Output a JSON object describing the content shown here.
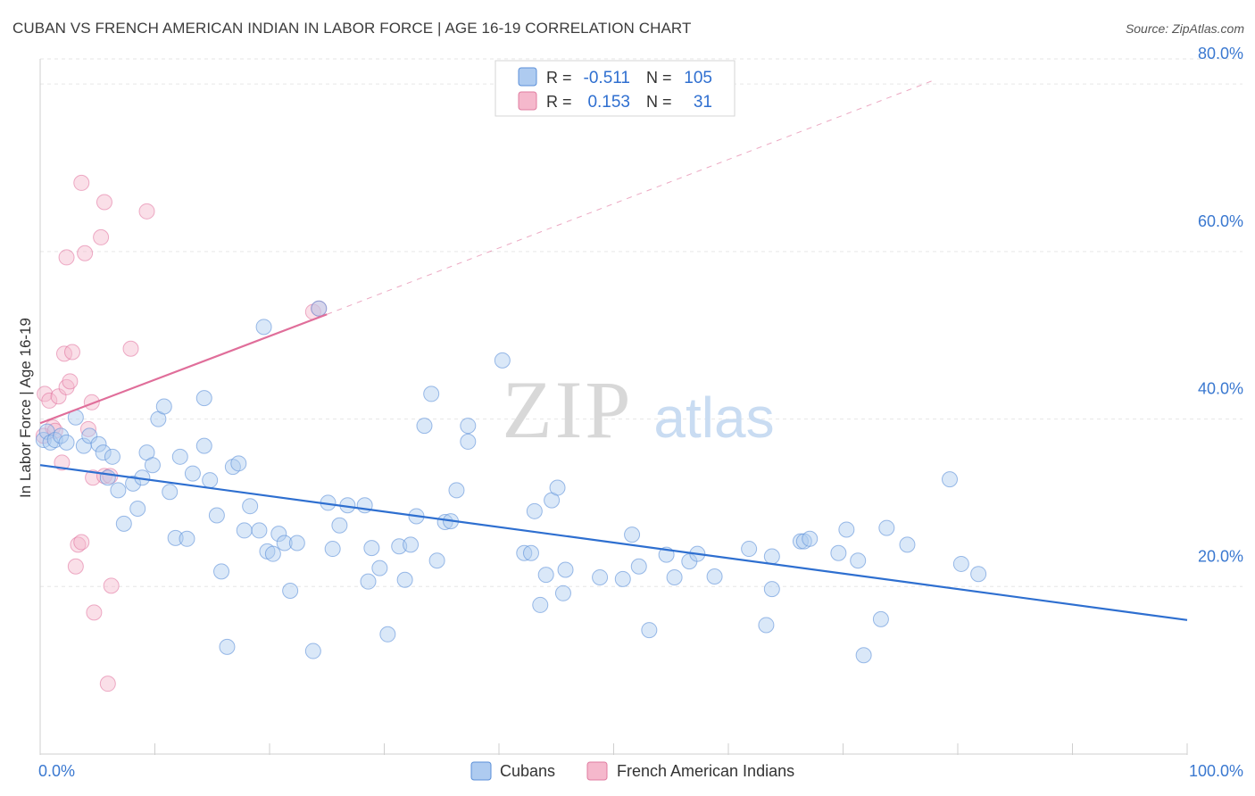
{
  "title": "CUBAN VS FRENCH AMERICAN INDIAN IN LABOR FORCE | AGE 16-19 CORRELATION CHART",
  "source": "Source: ZipAtlas.com",
  "watermark": {
    "zip": "ZIP",
    "atlas": "atlas"
  },
  "colors": {
    "blue": "#2e6fd0",
    "blue_fill": "#aecbf0",
    "pink": "#e06e9a",
    "pink_fill": "#f5b8cc",
    "axis_text": "#3a78d0"
  },
  "legend_top": {
    "rows": [
      {
        "r_label": "R =",
        "r_value": "-0.511",
        "n_label": "N =",
        "n_value": "105"
      },
      {
        "r_label": "R =",
        "r_value": "0.153",
        "n_label": "N =",
        "n_value": "31"
      }
    ]
  },
  "legend_bottom": [
    "Cubans",
    "French American Indians"
  ],
  "chart_data": {
    "type": "scatter",
    "title": "CUBAN VS FRENCH AMERICAN INDIAN IN LABOR FORCE | AGE 16-19 CORRELATION CHART",
    "xlabel": "",
    "ylabel": "In Labor Force | Age 16-19",
    "xlim": [
      0,
      100
    ],
    "ylim": [
      0,
      83
    ],
    "x_tick_labels": [
      "0.0%",
      "100.0%"
    ],
    "y_ticks": [
      20,
      40,
      60,
      80
    ],
    "y_tick_labels": [
      "20.0%",
      "40.0%",
      "60.0%",
      "80.0%"
    ],
    "grid": true,
    "legend_position": "bottom-center",
    "series": [
      {
        "name": "Cubans",
        "r": -0.511,
        "n": 105,
        "trend": {
          "x": [
            0,
            100
          ],
          "y": [
            34.5,
            16
          ]
        },
        "points": [
          [
            0.3,
            37.5
          ],
          [
            0.6,
            38.5
          ],
          [
            0.9,
            37.2
          ],
          [
            1.3,
            37.5
          ],
          [
            1.8,
            38
          ],
          [
            2.3,
            37.2
          ],
          [
            3.1,
            40.2
          ],
          [
            3.8,
            36.8
          ],
          [
            4.3,
            38
          ],
          [
            5.1,
            37
          ],
          [
            5.5,
            36
          ],
          [
            5.9,
            33
          ],
          [
            6.3,
            35.5
          ],
          [
            6.8,
            31.5
          ],
          [
            7.3,
            27.5
          ],
          [
            8.1,
            32.3
          ],
          [
            8.5,
            29.3
          ],
          [
            8.9,
            33
          ],
          [
            9.3,
            36
          ],
          [
            9.8,
            34.5
          ],
          [
            10.3,
            40
          ],
          [
            10.8,
            41.5
          ],
          [
            11.3,
            31.3
          ],
          [
            11.8,
            25.8
          ],
          [
            12.2,
            35.5
          ],
          [
            12.8,
            25.7
          ],
          [
            13.3,
            33.5
          ],
          [
            14.3,
            42.5
          ],
          [
            14.3,
            36.8
          ],
          [
            14.8,
            32.7
          ],
          [
            15.4,
            28.5
          ],
          [
            15.8,
            21.8
          ],
          [
            16.3,
            12.8
          ],
          [
            16.8,
            34.3
          ],
          [
            17.3,
            34.7
          ],
          [
            17.8,
            26.7
          ],
          [
            18.3,
            29.6
          ],
          [
            19.1,
            26.7
          ],
          [
            19.5,
            51
          ],
          [
            19.8,
            24.2
          ],
          [
            20.3,
            23.9
          ],
          [
            20.8,
            26.3
          ],
          [
            21.3,
            25.2
          ],
          [
            21.8,
            19.5
          ],
          [
            22.4,
            25.2
          ],
          [
            23.8,
            12.3
          ],
          [
            24.3,
            53.2
          ],
          [
            25.1,
            30
          ],
          [
            25.5,
            24.5
          ],
          [
            26.1,
            27.3
          ],
          [
            26.8,
            29.7
          ],
          [
            28.3,
            29.7
          ],
          [
            28.6,
            20.6
          ],
          [
            28.9,
            24.6
          ],
          [
            29.6,
            22.2
          ],
          [
            30.3,
            14.3
          ],
          [
            31.3,
            24.8
          ],
          [
            31.8,
            20.8
          ],
          [
            32.3,
            25
          ],
          [
            32.8,
            28.4
          ],
          [
            33.5,
            39.2
          ],
          [
            34.1,
            43
          ],
          [
            34.6,
            23.1
          ],
          [
            35.3,
            27.7
          ],
          [
            35.8,
            27.8
          ],
          [
            36.3,
            31.5
          ],
          [
            37.3,
            39.2
          ],
          [
            37.3,
            37.3
          ],
          [
            40.3,
            47
          ],
          [
            42.2,
            24
          ],
          [
            42.8,
            24
          ],
          [
            43.1,
            29
          ],
          [
            43.6,
            17.8
          ],
          [
            44.1,
            21.4
          ],
          [
            44.6,
            30.3
          ],
          [
            45.1,
            31.8
          ],
          [
            45.6,
            19.2
          ],
          [
            45.8,
            22
          ],
          [
            48.8,
            21.1
          ],
          [
            50.8,
            20.9
          ],
          [
            51.6,
            26.2
          ],
          [
            52.2,
            22.4
          ],
          [
            53.1,
            14.8
          ],
          [
            54.6,
            23.8
          ],
          [
            55.3,
            21.1
          ],
          [
            56.6,
            23
          ],
          [
            57.3,
            23.9
          ],
          [
            58.8,
            21.2
          ],
          [
            61.8,
            24.5
          ],
          [
            63.3,
            15.4
          ],
          [
            63.8,
            19.7
          ],
          [
            63.8,
            23.6
          ],
          [
            66.3,
            25.4
          ],
          [
            66.6,
            25.4
          ],
          [
            67.1,
            25.7
          ],
          [
            69.6,
            24
          ],
          [
            70.3,
            26.8
          ],
          [
            71.3,
            23.1
          ],
          [
            71.8,
            11.8
          ],
          [
            73.3,
            16.1
          ],
          [
            73.8,
            27
          ],
          [
            75.6,
            25
          ],
          [
            79.3,
            32.8
          ],
          [
            80.3,
            22.7
          ],
          [
            81.8,
            21.5
          ]
        ]
      },
      {
        "name": "French American Indians",
        "r": 0.153,
        "n": 31,
        "trend_solid": {
          "x": [
            0,
            25
          ],
          "y": [
            39.5,
            52.5
          ]
        },
        "trend_dashed": {
          "x": [
            25,
            78
          ],
          "y": [
            52.5,
            80.5
          ]
        },
        "points": [
          [
            0.3,
            38
          ],
          [
            0.4,
            43
          ],
          [
            0.8,
            42.2
          ],
          [
            1.1,
            39
          ],
          [
            1.3,
            38.6
          ],
          [
            1.6,
            42.7
          ],
          [
            1.9,
            34.8
          ],
          [
            2.1,
            47.8
          ],
          [
            2.3,
            59.3
          ],
          [
            2.3,
            43.8
          ],
          [
            2.6,
            44.5
          ],
          [
            2.8,
            48
          ],
          [
            3.1,
            22.4
          ],
          [
            3.3,
            25
          ],
          [
            3.6,
            25.3
          ],
          [
            3.6,
            68.2
          ],
          [
            3.9,
            59.8
          ],
          [
            4.2,
            38.8
          ],
          [
            4.5,
            42
          ],
          [
            4.6,
            33
          ],
          [
            4.7,
            16.9
          ],
          [
            5.3,
            61.7
          ],
          [
            5.6,
            33.2
          ],
          [
            5.6,
            65.9
          ],
          [
            5.9,
            8.4
          ],
          [
            6.1,
            33.2
          ],
          [
            6.2,
            20.1
          ],
          [
            7.9,
            48.4
          ],
          [
            9.3,
            64.8
          ],
          [
            23.8,
            52.8
          ],
          [
            24.3,
            53.2
          ]
        ]
      }
    ]
  }
}
